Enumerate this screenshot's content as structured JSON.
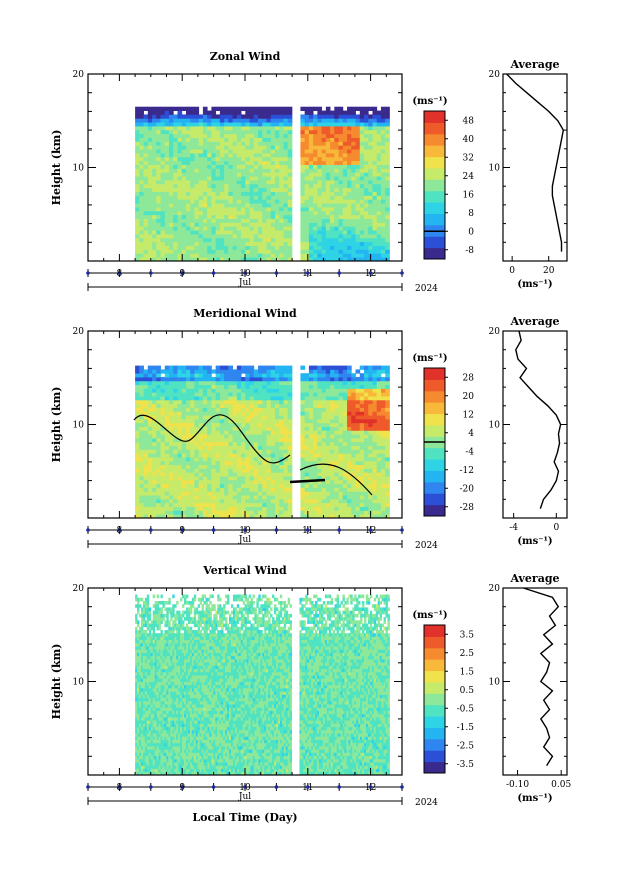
{
  "chart_data": [
    {
      "type": "heatmap",
      "title": "Zonal Wind",
      "ylabel": "Height (km)",
      "ylim": [
        0,
        20
      ],
      "yticks": [
        "10",
        "20"
      ],
      "xlim": [
        7.5,
        12.5
      ],
      "xticks": [
        "8",
        "9",
        "10",
        "11",
        "12"
      ],
      "month_label": "Jul",
      "year_label": "2024",
      "data_gap": [
        10.75,
        10.85
      ],
      "colorbar": {
        "unit": "(ms⁻¹)",
        "levels": [
          "48",
          "40",
          "32",
          "24",
          "16",
          "8",
          "0",
          "-8"
        ],
        "range": [
          -12,
          52
        ],
        "marker": 0
      },
      "average": {
        "title": "Average",
        "xlim": [
          -5,
          30
        ],
        "xticks": [
          "0",
          "20"
        ],
        "xlabel": "(ms⁻¹)",
        "y": [
          1,
          2,
          3,
          4,
          5,
          6,
          7,
          8,
          9,
          10,
          11,
          12,
          13,
          14,
          15,
          16,
          17,
          18,
          19,
          20
        ],
        "x": [
          27,
          27,
          26,
          25,
          24,
          23,
          22,
          22,
          23,
          24,
          25,
          26,
          27,
          28,
          25,
          20,
          14,
          8,
          2,
          -3
        ]
      }
    },
    {
      "type": "heatmap",
      "title": "Meridional Wind",
      "ylabel": "Height (km)",
      "ylim": [
        0,
        20
      ],
      "yticks": [
        "10",
        "20"
      ],
      "xlim": [
        7.5,
        12.5
      ],
      "xticks": [
        "8",
        "9",
        "10",
        "11",
        "12"
      ],
      "month_label": "Jul",
      "year_label": "2024",
      "data_gap": [
        10.75,
        10.85
      ],
      "colorbar": {
        "unit": "(ms⁻¹)",
        "levels": [
          "28",
          "20",
          "12",
          "4",
          "-4",
          "-12",
          "-20",
          "-28"
        ],
        "range": [
          -32,
          32
        ],
        "marker": 0
      },
      "average": {
        "title": "Average",
        "xlim": [
          -5,
          1
        ],
        "xticks": [
          "-4",
          "0"
        ],
        "xlabel": "(ms⁻¹)",
        "y": [
          1,
          2,
          3,
          4,
          5,
          6,
          7,
          8,
          9,
          10,
          11,
          12,
          13,
          14,
          15,
          16,
          17,
          18,
          19,
          20
        ],
        "x": [
          -1.5,
          -1.2,
          -0.5,
          0.0,
          0.2,
          -0.2,
          0.1,
          0.3,
          0.2,
          0.4,
          0.0,
          -0.8,
          -1.8,
          -2.6,
          -3.4,
          -2.8,
          -3.6,
          -3.8,
          -3.3,
          -3.5
        ]
      }
    },
    {
      "type": "heatmap",
      "title": "Vertical Wind",
      "ylabel": "Height (km)",
      "xlabel": "Local Time (Day)",
      "ylim": [
        0,
        20
      ],
      "yticks": [
        "10",
        "20"
      ],
      "xlim": [
        7.5,
        12.5
      ],
      "xticks": [
        "8",
        "9",
        "10",
        "11",
        "12"
      ],
      "month_label": "Jul",
      "year_label": "2024",
      "data_gap": [
        10.75,
        10.85
      ],
      "colorbar": {
        "unit": "(ms⁻¹)",
        "levels": [
          "3.5",
          "2.5",
          "1.5",
          "0.5",
          "-0.5",
          "-1.5",
          "-2.5",
          "-3.5"
        ],
        "range": [
          -4,
          4
        ],
        "marker": null
      },
      "average": {
        "title": "Average",
        "xlim": [
          -0.15,
          0.07
        ],
        "xticks": [
          "-0.10",
          "0.05"
        ],
        "xlabel": "(ms⁻¹)",
        "y": [
          1,
          2,
          3,
          4,
          5,
          6,
          7,
          8,
          9,
          10,
          11,
          12,
          13,
          14,
          15,
          16,
          17,
          18,
          19,
          20
        ],
        "x": [
          0.0,
          0.02,
          -0.01,
          0.01,
          0.0,
          -0.02,
          0.01,
          -0.01,
          0.02,
          -0.02,
          0.0,
          0.01,
          -0.02,
          0.02,
          -0.01,
          0.03,
          0.01,
          0.04,
          0.02,
          -0.08
        ]
      }
    }
  ]
}
